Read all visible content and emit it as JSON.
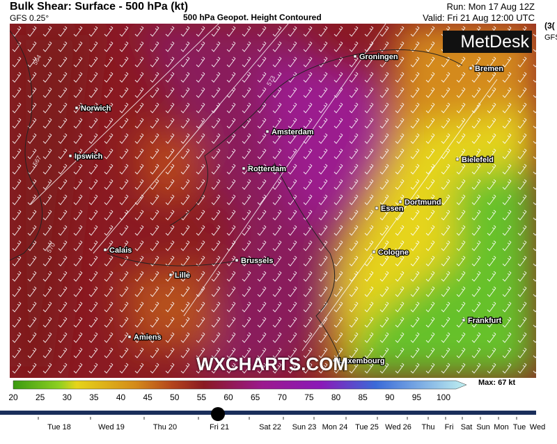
{
  "header": {
    "title": "Bulk Shear: Surface - 500 hPa (kt)",
    "model": "GFS 0.25°",
    "subtitle": "500 hPa Geopot. Height Contoured",
    "run": "Run: Mon 17 Aug 12Z",
    "valid": "Valid: Fri 21 Aug 12:00 UTC",
    "side_cut": [
      "(3(",
      "GFS"
    ]
  },
  "brand": "MetDesk",
  "watermark": "WXCHARTS.COM",
  "contours": [
    "564",
    "567",
    "570",
    "573"
  ],
  "cities": [
    "Groningen",
    "Bremen",
    "Norwich",
    "Amsterdam",
    "Ipswich",
    "Bielefeld",
    "Rotterdam",
    "Dortmund",
    "Essen",
    "Calais",
    "Cologne",
    "Brussels",
    "Lille",
    "Frankfurt",
    "Amiens",
    "Luxembourg"
  ],
  "legend": {
    "ticks": [
      20,
      25,
      30,
      35,
      40,
      45,
      50,
      55,
      60,
      65,
      70,
      75,
      80,
      85,
      90,
      95,
      100
    ],
    "max": "Max: 67 kt"
  },
  "timeline": [
    "Tue 18",
    "Wed 19",
    "Thu 20",
    "Fri 21",
    "Sat 22",
    "Sun 23",
    "Mon 24",
    "Tue 25",
    "Wed 26",
    "Thu",
    "Fri",
    "Sat",
    "Sun",
    "Mon",
    "Tue",
    "Wed"
  ]
}
